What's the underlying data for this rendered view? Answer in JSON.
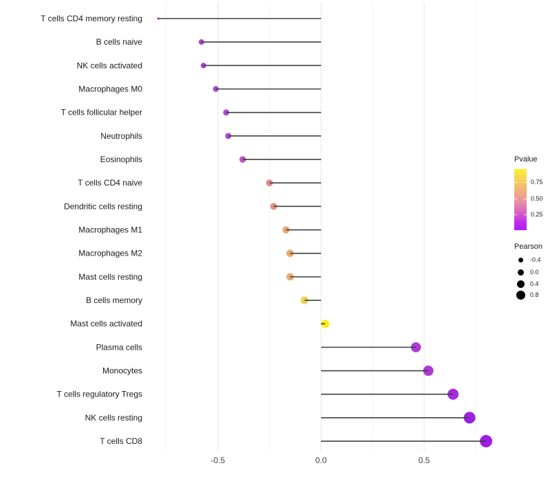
{
  "chart_data": {
    "type": "lollipop",
    "title": "",
    "xlabel": "",
    "ylabel": "",
    "xlim": [
      -0.87,
      0.88
    ],
    "grid": "vertical-only",
    "x_axis": {
      "major_ticks": [
        {
          "value": -0.5,
          "label": "-0.5"
        },
        {
          "value": 0.0,
          "label": "0.0"
        },
        {
          "value": 0.5,
          "label": "0.5"
        }
      ],
      "minor_gridlines": [
        -0.75,
        -0.25,
        0.25,
        0.75
      ]
    },
    "rows": [
      {
        "label": "T cells CD4 memory resting",
        "pearson": -0.79,
        "dot_color": "#9C30C8",
        "dot_radius": 1.5
      },
      {
        "label": "B cells naive",
        "pearson": -0.58,
        "dot_color": "#AB3FD1",
        "dot_radius": 4.0
      },
      {
        "label": "NK cells activated",
        "pearson": -0.57,
        "dot_color": "#AB3FD1",
        "dot_radius": 4.0
      },
      {
        "label": "Macrophages M0",
        "pearson": -0.51,
        "dot_color": "#AC46CE",
        "dot_radius": 4.2
      },
      {
        "label": "T cells follicular helper",
        "pearson": -0.46,
        "dot_color": "#AD4DCB",
        "dot_radius": 4.5
      },
      {
        "label": "Neutrophils",
        "pearson": -0.45,
        "dot_color": "#AD4DCB",
        "dot_radius": 4.5
      },
      {
        "label": "Eosinophils",
        "pearson": -0.38,
        "dot_color": "#BC55C3",
        "dot_radius": 4.8
      },
      {
        "label": "T cells CD4 naive",
        "pearson": -0.25,
        "dot_color": "#E08C92",
        "dot_radius": 5.0
      },
      {
        "label": "Dendritic cells resting",
        "pearson": -0.23,
        "dot_color": "#E08D89",
        "dot_radius": 5.0
      },
      {
        "label": "Macrophages M1",
        "pearson": -0.17,
        "dot_color": "#E9A873",
        "dot_radius": 5.2
      },
      {
        "label": "Macrophages M2",
        "pearson": -0.15,
        "dot_color": "#E9A76B",
        "dot_radius": 5.3
      },
      {
        "label": "Mast cells resting",
        "pearson": -0.15,
        "dot_color": "#E8A76E",
        "dot_radius": 5.3
      },
      {
        "label": "B cells memory",
        "pearson": -0.08,
        "dot_color": "#F0D152",
        "dot_radius": 5.6
      },
      {
        "label": "Mast cells activated",
        "pearson": 0.02,
        "dot_color": "#F6F014",
        "dot_radius": 6.0
      },
      {
        "label": "Plasma cells",
        "pearson": 0.46,
        "dot_color": "#AC3BD3",
        "dot_radius": 7.3
      },
      {
        "label": "Monocytes",
        "pearson": 0.52,
        "dot_color": "#AC3BD3",
        "dot_radius": 7.5
      },
      {
        "label": "T cells regulatory  Tregs",
        "pearson": 0.64,
        "dot_color": "#A62BDC",
        "dot_radius": 8.0
      },
      {
        "label": "NK cells resting",
        "pearson": 0.72,
        "dot_color": "#9E20E3",
        "dot_radius": 8.5
      },
      {
        "label": "T cells CD8",
        "pearson": 0.8,
        "dot_color": "#9D1EE5",
        "dot_radius": 9.0
      }
    ],
    "legend": {
      "pvalue": {
        "title": "Pvalue",
        "domain": [
          0,
          0.96
        ],
        "ticks": [
          {
            "value": 0.75,
            "label": "0.75"
          },
          {
            "value": 0.5,
            "label": "0.50"
          },
          {
            "value": 0.25,
            "label": "0.25"
          }
        ],
        "gradient_stops": [
          "#F9F22B 0%",
          "#F4D25E 18%",
          "#EFAD7C 38%",
          "#E795A0 52%",
          "#DA64C2 70%",
          "#BE2EE8 87%",
          "#AE1CF2 100%"
        ]
      },
      "pearson": {
        "title": "Pearson",
        "items": [
          {
            "label": "-0.4",
            "diameter": 7
          },
          {
            "label": "0.0",
            "diameter": 9
          },
          {
            "label": "0.4",
            "diameter": 11
          },
          {
            "label": "0.8",
            "diameter": 13
          }
        ]
      }
    },
    "colors": {
      "background": "#FFFFFF",
      "segment": "#3F3F3F",
      "gridline_major": "#E4E4E4",
      "gridline_minor": "#F1F1F1",
      "axis_text": "#404040",
      "y_label_text": "#1A1A1A",
      "legend_dot": "#000000"
    }
  }
}
